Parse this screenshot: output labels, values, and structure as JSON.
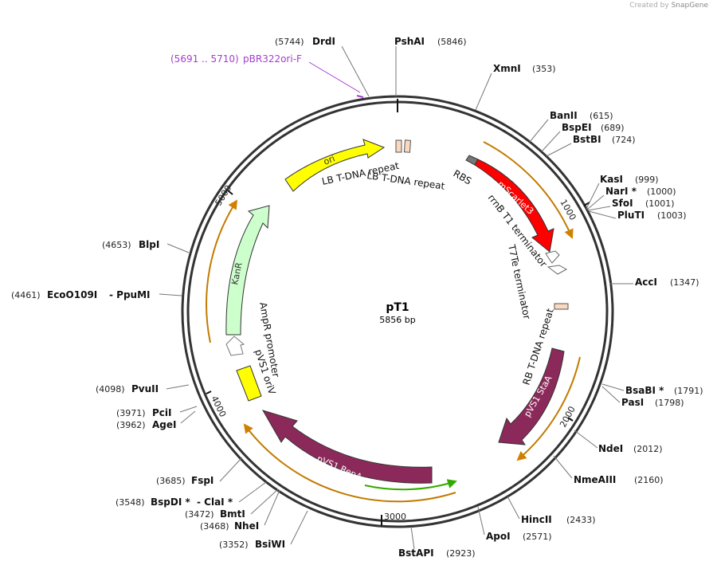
{
  "credit": {
    "text": "Created by",
    "brand": "SnapGene"
  },
  "plasmid": {
    "name": "pT1",
    "length_text": "5856 bp",
    "length": 5856
  },
  "ticks": [
    {
      "label": "1000",
      "pos": 1000
    },
    {
      "label": "2000",
      "pos": 2000
    },
    {
      "label": "3000",
      "pos": 3000
    },
    {
      "label": "4000",
      "pos": 4000
    },
    {
      "label": "5000",
      "pos": 5000
    }
  ],
  "primer": {
    "label": "pBR322ori-F",
    "range": "(5691 .. 5710)",
    "color": "#a43cd0"
  },
  "sites": [
    {
      "name": "DrdI",
      "pos": "(5744)"
    },
    {
      "name": "PshAI",
      "pos": "(5846)"
    },
    {
      "name": "XmnI",
      "pos": "(353)"
    },
    {
      "name": "BanII",
      "pos": "(615)"
    },
    {
      "name": "BspEI",
      "pos": "(689)"
    },
    {
      "name": "BstBI",
      "pos": "(724)"
    },
    {
      "name": "KasI",
      "pos": "(999)"
    },
    {
      "name": "NarI *",
      "pos": "(1000)"
    },
    {
      "name": "SfoI",
      "pos": "(1001)"
    },
    {
      "name": "PluTI",
      "pos": "(1003)"
    },
    {
      "name": "AccI",
      "pos": "(1347)"
    },
    {
      "name": "BsaBI *",
      "pos": "(1791)"
    },
    {
      "name": "PasI",
      "pos": "(1798)"
    },
    {
      "name": "NdeI",
      "pos": "(2012)"
    },
    {
      "name": "NmeAIII",
      "pos": "(2160)"
    },
    {
      "name": "HincII",
      "pos": "(2433)"
    },
    {
      "name": "ApoI",
      "pos": "(2571)"
    },
    {
      "name": "BstAPI",
      "pos": "(2923)"
    },
    {
      "name": "BsiWI",
      "pos": "(3352)"
    },
    {
      "name": "NheI",
      "pos": "(3468)"
    },
    {
      "name": "BmtI",
      "pos": "(3472)"
    },
    {
      "name": "BspDI *",
      "pos": "(3548)",
      "pair": "- ClaI *"
    },
    {
      "name": "FspI",
      "pos": "(3685)"
    },
    {
      "name": "AgeI",
      "pos": "(3962)"
    },
    {
      "name": "PciI",
      "pos": "(3971)"
    },
    {
      "name": "PvuII",
      "pos": "(4098)"
    },
    {
      "name": "EcoO109I",
      "pos": "(4461)",
      "pair": "- PpuMI"
    },
    {
      "name": "BlpI",
      "pos": "(4653)"
    }
  ],
  "features": {
    "ori": "ori",
    "lb1": "LB T-DNA repeat",
    "lb2": "LB T-DNA repeat",
    "rbs": "RBS",
    "mscarlet": "mScarlet3",
    "rrnb": "rrnB T1 terminator",
    "t7te": "T7Te terminator",
    "rb": "RB T-DNA repeat",
    "pvs1stab": "pVS1 StaA",
    "pvs1repa": "pVS1 RepA",
    "pvs1ori": "pVS1 oriV",
    "ampr": "AmpR promoter",
    "kanr": "KanR"
  },
  "colors": {
    "ori": "#ffff00",
    "mscarlet": "#ff0000",
    "pvs1": "#8b2a5a",
    "kanr": "#ccffcc",
    "orf": "#f0a020",
    "repeat": "#f9d9c0",
    "primer_green": "#33aa00"
  }
}
